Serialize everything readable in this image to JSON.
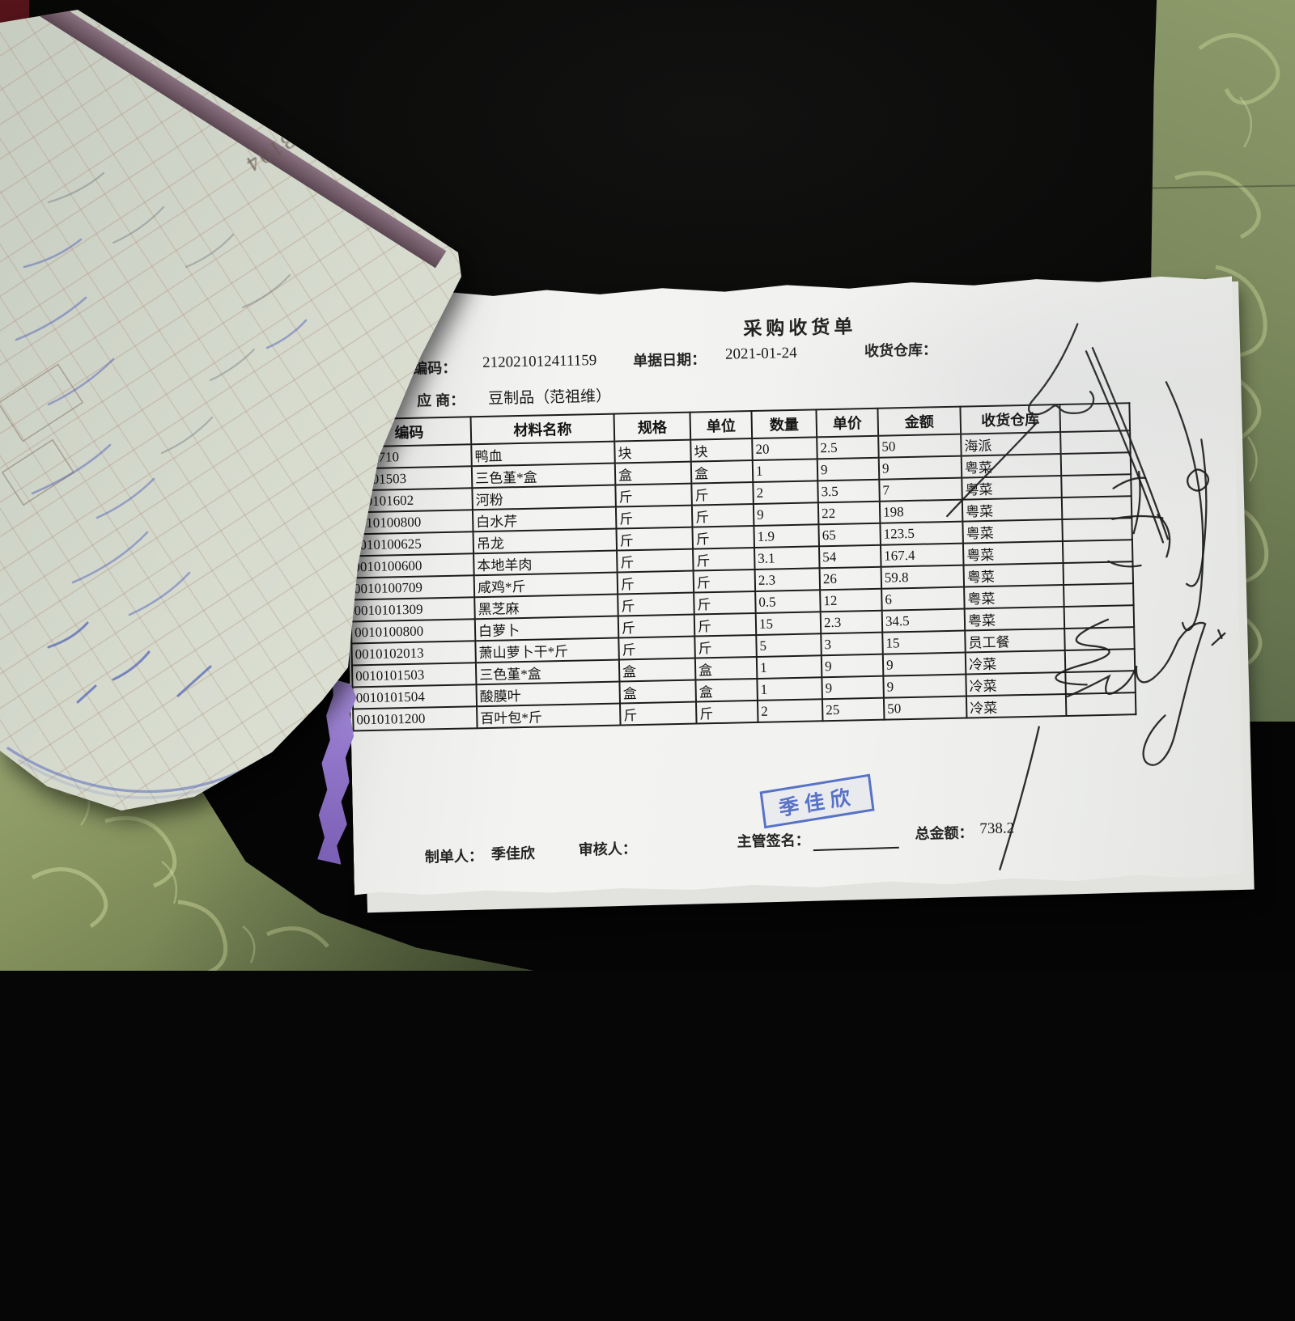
{
  "receipt": {
    "title": "采购收货单",
    "fields": {
      "code_label": "编码：",
      "code_value": "212021012411159",
      "date_label": "单据日期：",
      "date_value": "2021-01-24",
      "warehouse_label": "收货仓库：",
      "supplier_label": "应  商：",
      "supplier_value": "豆制品（范祖维）"
    },
    "table": {
      "headers": [
        "编码",
        "材料名称",
        "规格",
        "单位",
        "数量",
        "单价",
        "金额",
        "收货仓库"
      ],
      "rows": [
        [
          "0100710",
          "鸭血",
          "块",
          "块",
          "20",
          "2.5",
          "50",
          "海派"
        ],
        [
          "10101503",
          "三色堇*盒",
          "盒",
          "盒",
          "1",
          "9",
          "9",
          "粤菜"
        ],
        [
          "010101602",
          "河粉",
          "斤",
          "斤",
          "2",
          "3.5",
          "7",
          "粤菜"
        ],
        [
          "0010100800",
          "白水芹",
          "斤",
          "斤",
          "9",
          "22",
          "198",
          "粤菜"
        ],
        [
          "0010100625",
          "吊龙",
          "斤",
          "斤",
          "1.9",
          "65",
          "123.5",
          "粤菜"
        ],
        [
          "0010100600",
          "本地羊肉",
          "斤",
          "斤",
          "3.1",
          "54",
          "167.4",
          "粤菜"
        ],
        [
          "0010100709",
          "咸鸡*斤",
          "斤",
          "斤",
          "2.3",
          "26",
          "59.8",
          "粤菜"
        ],
        [
          "0010101309",
          "黑芝麻",
          "斤",
          "斤",
          "0.5",
          "12",
          "6",
          "粤菜"
        ],
        [
          "0010100800",
          "白萝卜",
          "斤",
          "斤",
          "15",
          "2.3",
          "34.5",
          "粤菜"
        ],
        [
          "0010102013",
          "萧山萝卜干*斤",
          "斤",
          "斤",
          "5",
          "3",
          "15",
          "员工餐"
        ],
        [
          "0010101503",
          "三色堇*盒",
          "盒",
          "盒",
          "1",
          "9",
          "9",
          "冷菜"
        ],
        [
          "0010101504",
          "酸膜叶",
          "盒",
          "盒",
          "1",
          "9",
          "9",
          "冷菜"
        ],
        [
          "0010101200",
          "百叶包*斤",
          "斤",
          "斤",
          "2",
          "25",
          "50",
          "冷菜"
        ]
      ]
    },
    "footer": {
      "preparer_label": "制单人：",
      "preparer_value": "季佳欣",
      "reviewer_label": "审核人：",
      "supervisor_label": "主管签名：",
      "total_label": "总金额：",
      "total_value": "738.2"
    },
    "stamp_text": "季佳欣"
  },
  "notebook": {
    "serial_number": "№ 7183104"
  },
  "colors": {
    "stamp_blue": "#3d5cc0",
    "ink": "#1c1c1c",
    "paper_white": "#f2f2f0",
    "fabric_green": "#7c8a5e",
    "carbon_purple": "#8f74c8"
  }
}
